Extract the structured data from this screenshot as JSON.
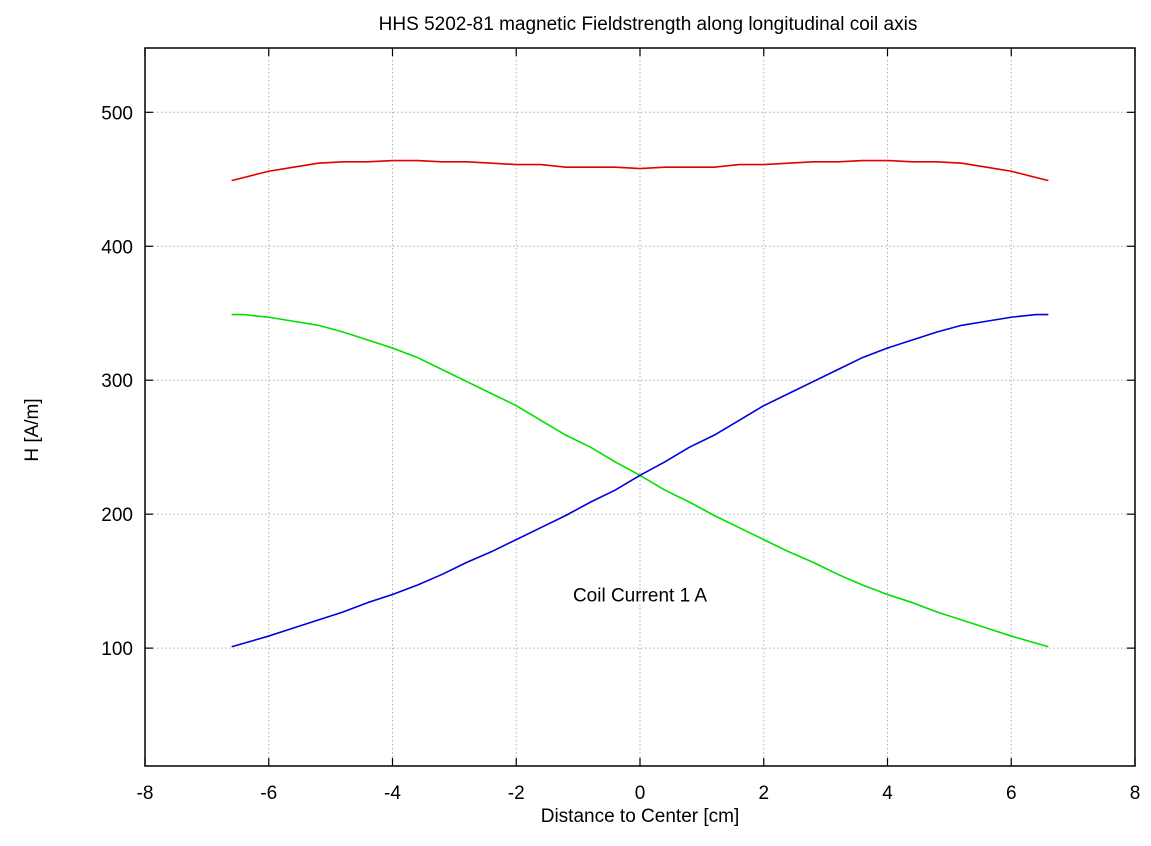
{
  "chart_data": {
    "type": "line",
    "title": "HHS 5202-81 magnetic Fieldstrength along longitudinal coil axis",
    "xlabel": "Distance to Center [cm]",
    "ylabel": "H [A/m]",
    "xlim": [
      -8,
      8
    ],
    "ylim": [
      12,
      548
    ],
    "xticks": [
      -8,
      -6,
      -4,
      -2,
      0,
      2,
      4,
      6,
      8
    ],
    "yticks": [
      100,
      200,
      300,
      400,
      500
    ],
    "grid": true,
    "annotation": {
      "text": "Coil Current 1 A",
      "x": 0,
      "y": 140
    },
    "series": [
      {
        "color": "#e00000",
        "x": [
          -6.6,
          -6,
          -5.6,
          -5.2,
          -4.8,
          -4.4,
          -4,
          -3.6,
          -3.2,
          -2.8,
          -2.4,
          -2,
          -1.6,
          -1.2,
          -0.8,
          -0.4,
          0,
          0.4,
          0.8,
          1.2,
          1.6,
          2,
          2.4,
          2.8,
          3.2,
          3.6,
          4,
          4.4,
          4.8,
          5.2,
          5.6,
          6,
          6.6
        ],
        "y": [
          449,
          456,
          459,
          462,
          463,
          463,
          464,
          464,
          463,
          463,
          462,
          461,
          461,
          459,
          459,
          459,
          458,
          459,
          459,
          459,
          461,
          461,
          462,
          463,
          463,
          464,
          464,
          463,
          463,
          462,
          459,
          456,
          449
        ]
      },
      {
        "color": "#00e000",
        "x": [
          -6.6,
          -6.4,
          -6,
          -5.6,
          -5.2,
          -4.8,
          -4.4,
          -4,
          -3.6,
          -3.2,
          -2.8,
          -2.4,
          -2,
          -1.6,
          -1.2,
          -0.8,
          -0.4,
          0,
          0.4,
          0.8,
          1.2,
          1.6,
          2,
          2.4,
          2.8,
          3.2,
          3.6,
          4,
          4.4,
          4.8,
          5.2,
          5.6,
          6,
          6.6
        ],
        "y": [
          349,
          349,
          347,
          344,
          341,
          336,
          330,
          324,
          317,
          308,
          299,
          290,
          281,
          270,
          259,
          250,
          239,
          229,
          218,
          209,
          199,
          190,
          181,
          172,
          164,
          155,
          147,
          140,
          134,
          127,
          121,
          115,
          109,
          101
        ]
      },
      {
        "color": "#0000e0",
        "x": [
          -6.6,
          -6,
          -5.6,
          -5.2,
          -4.8,
          -4.4,
          -4,
          -3.6,
          -3.2,
          -2.8,
          -2.4,
          -2,
          -1.6,
          -1.2,
          -0.8,
          -0.4,
          0,
          0.4,
          0.8,
          1.2,
          1.6,
          2,
          2.4,
          2.8,
          3.2,
          3.6,
          4,
          4.4,
          4.8,
          5.2,
          5.6,
          6,
          6.4,
          6.6
        ],
        "y": [
          101,
          109,
          115,
          121,
          127,
          134,
          140,
          147,
          155,
          164,
          172,
          181,
          190,
          199,
          209,
          218,
          229,
          239,
          250,
          259,
          270,
          281,
          290,
          299,
          308,
          317,
          324,
          330,
          336,
          341,
          344,
          347,
          349,
          349
        ]
      }
    ]
  }
}
